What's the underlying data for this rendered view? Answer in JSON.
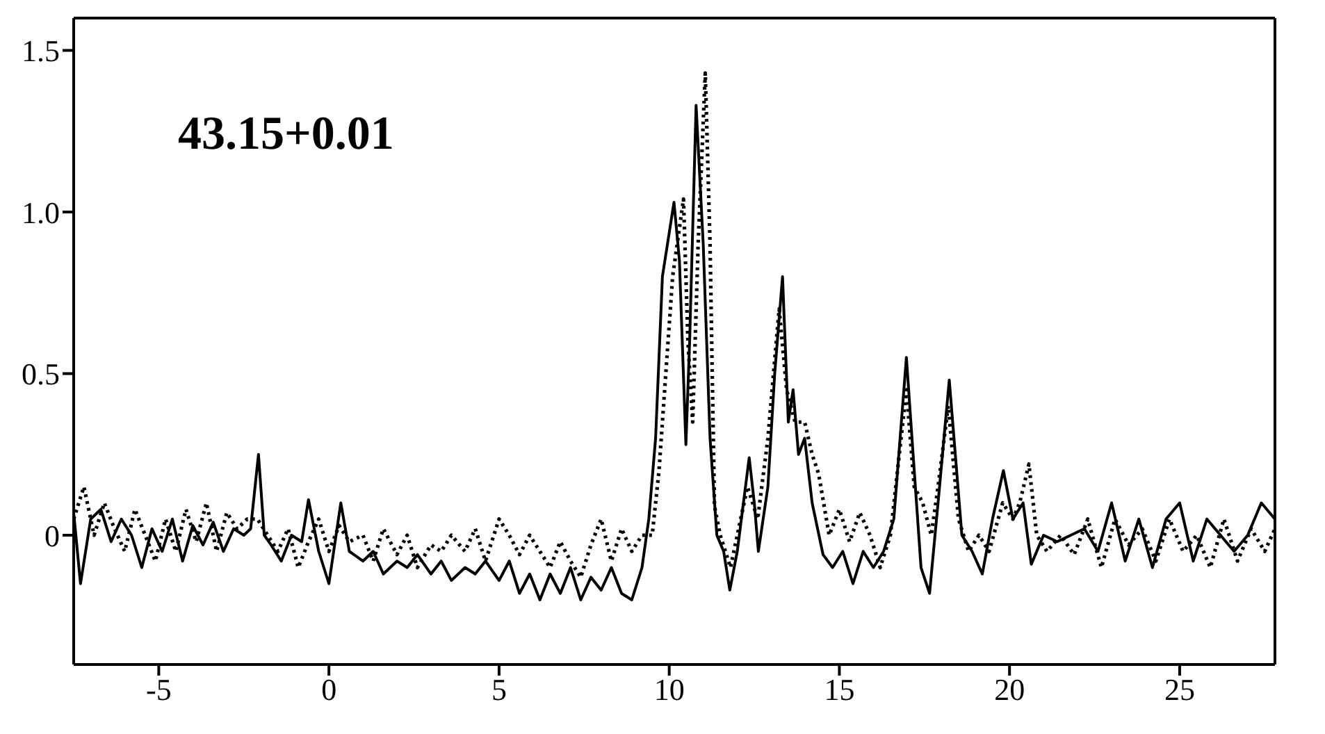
{
  "chart_data": {
    "type": "line",
    "annotations": [
      "43.15+0.01"
    ],
    "xlim": [
      -7.5,
      27.8
    ],
    "xticks": [
      -5,
      0,
      5,
      10,
      15,
      20,
      25
    ],
    "ylim": [
      -0.4,
      1.6
    ],
    "yticks": [
      0,
      0.5,
      {
        "value": 1,
        "label": "1.0"
      },
      1.5
    ],
    "grid": false,
    "legend": false,
    "marker": "none",
    "series": [
      {
        "color": "#000000",
        "line_style": "solid",
        "x": [
          -7.5,
          -7.3,
          -7.0,
          -6.7,
          -6.4,
          -6.1,
          -5.8,
          -5.5,
          -5.2,
          -4.9,
          -4.6,
          -4.3,
          -4.0,
          -3.7,
          -3.4,
          -3.1,
          -2.8,
          -2.5,
          -2.3,
          -2.07,
          -1.9,
          -1.7,
          -1.4,
          -1.1,
          -0.8,
          -0.6,
          -0.3,
          0.0,
          0.35,
          0.6,
          1.0,
          1.3,
          1.6,
          2.0,
          2.3,
          2.6,
          3.0,
          3.3,
          3.6,
          4.0,
          4.3,
          4.6,
          5.0,
          5.3,
          5.6,
          5.9,
          6.2,
          6.5,
          6.8,
          7.1,
          7.4,
          7.7,
          8.0,
          8.3,
          8.6,
          8.9,
          9.2,
          9.4,
          9.6,
          9.8,
          10.14,
          10.3,
          10.49,
          10.6,
          10.79,
          11.0,
          11.2,
          11.4,
          11.6,
          11.78,
          12.0,
          12.35,
          12.5,
          12.62,
          12.9,
          13.1,
          13.33,
          13.5,
          13.64,
          13.8,
          13.98,
          14.2,
          14.52,
          14.8,
          15.1,
          15.4,
          15.7,
          16.0,
          16.3,
          16.6,
          16.97,
          17.2,
          17.4,
          17.65,
          17.9,
          18.23,
          18.6,
          18.9,
          19.2,
          19.5,
          19.82,
          20.1,
          20.4,
          20.64,
          21.0,
          21.4,
          21.8,
          22.2,
          22.6,
          23.0,
          23.4,
          23.8,
          24.2,
          24.6,
          25.0,
          25.4,
          25.8,
          26.2,
          26.6,
          27.0,
          27.4,
          27.8
        ],
        "values": [
          0.07,
          -0.15,
          0.05,
          0.08,
          -0.02,
          0.05,
          0.0,
          -0.1,
          0.02,
          -0.05,
          0.05,
          -0.08,
          0.03,
          -0.03,
          0.04,
          -0.05,
          0.02,
          0.0,
          0.02,
          0.25,
          0.0,
          -0.03,
          -0.08,
          0.0,
          -0.02,
          0.11,
          -0.05,
          -0.15,
          0.1,
          -0.05,
          -0.08,
          -0.05,
          -0.12,
          -0.08,
          -0.1,
          -0.06,
          -0.12,
          -0.08,
          -0.14,
          -0.1,
          -0.12,
          -0.08,
          -0.14,
          -0.08,
          -0.18,
          -0.12,
          -0.2,
          -0.12,
          -0.18,
          -0.1,
          -0.2,
          -0.13,
          -0.17,
          -0.1,
          -0.18,
          -0.2,
          -0.1,
          0.05,
          0.3,
          0.8,
          1.03,
          0.85,
          0.28,
          0.6,
          1.33,
          0.9,
          0.3,
          0.0,
          -0.05,
          -0.17,
          -0.05,
          0.24,
          0.1,
          -0.05,
          0.15,
          0.5,
          0.8,
          0.35,
          0.45,
          0.25,
          0.3,
          0.1,
          -0.06,
          -0.1,
          -0.05,
          -0.15,
          -0.05,
          -0.1,
          -0.05,
          0.05,
          0.55,
          0.2,
          -0.1,
          -0.18,
          0.1,
          0.48,
          0.0,
          -0.05,
          -0.12,
          0.05,
          0.2,
          0.05,
          0.1,
          -0.09,
          0.0,
          -0.02,
          0.0,
          0.02,
          -0.05,
          0.1,
          -0.08,
          0.05,
          -0.1,
          0.05,
          0.1,
          -0.08,
          0.05,
          0.0,
          -0.05,
          0.0,
          0.1,
          0.05
        ]
      },
      {
        "color": "#000000",
        "line_style": "dotted",
        "x": [
          -7.5,
          -7.2,
          -6.9,
          -6.6,
          -6.3,
          -6.0,
          -5.7,
          -5.4,
          -5.1,
          -4.8,
          -4.5,
          -4.2,
          -3.9,
          -3.6,
          -3.3,
          -3.0,
          -2.7,
          -2.4,
          -2.1,
          -1.8,
          -1.5,
          -1.2,
          -0.9,
          -0.6,
          -0.3,
          0.0,
          0.3,
          0.6,
          1.0,
          1.3,
          1.6,
          2.0,
          2.3,
          2.6,
          3.0,
          3.3,
          3.6,
          4.0,
          4.3,
          4.6,
          5.0,
          5.3,
          5.6,
          5.9,
          6.2,
          6.5,
          6.8,
          7.1,
          7.4,
          7.7,
          8.0,
          8.3,
          8.6,
          8.9,
          9.2,
          9.5,
          9.7,
          9.9,
          10.1,
          10.42,
          10.55,
          10.69,
          10.85,
          11.06,
          11.2,
          11.33,
          11.5,
          11.8,
          12.0,
          12.3,
          12.6,
          12.9,
          13.23,
          13.45,
          13.7,
          13.98,
          14.2,
          14.39,
          14.7,
          15.0,
          15.3,
          15.6,
          15.9,
          16.2,
          16.5,
          16.97,
          17.2,
          17.45,
          17.7,
          17.9,
          18.2,
          18.5,
          18.8,
          19.1,
          19.4,
          19.8,
          20.1,
          20.3,
          20.57,
          20.8,
          21.1,
          21.5,
          21.9,
          22.3,
          22.7,
          23.1,
          23.5,
          23.9,
          24.3,
          24.7,
          25.1,
          25.5,
          25.9,
          26.3,
          26.7,
          27.1,
          27.5,
          27.8
        ],
        "values": [
          0.05,
          0.15,
          0.0,
          0.1,
          0.02,
          -0.05,
          0.08,
          0.0,
          -0.08,
          0.05,
          -0.05,
          0.08,
          -0.02,
          0.1,
          -0.05,
          0.07,
          0.02,
          0.05,
          0.05,
          0.0,
          -0.05,
          0.02,
          -0.1,
          -0.02,
          0.05,
          -0.05,
          0.03,
          -0.02,
          0.0,
          -0.08,
          0.02,
          -0.06,
          0.0,
          -0.1,
          -0.03,
          -0.05,
          0.0,
          -0.05,
          0.02,
          -0.08,
          0.05,
          0.0,
          -0.06,
          0.0,
          -0.05,
          -0.1,
          -0.02,
          -0.08,
          -0.13,
          -0.03,
          0.05,
          -0.08,
          0.02,
          -0.05,
          0.0,
          0.0,
          0.2,
          0.5,
          0.8,
          1.04,
          0.6,
          0.35,
          0.9,
          1.43,
          0.9,
          0.09,
          0.0,
          -0.1,
          0.0,
          0.15,
          0.05,
          0.3,
          0.7,
          0.45,
          0.35,
          0.35,
          0.25,
          0.19,
          0.0,
          0.08,
          -0.02,
          0.07,
          0.0,
          -0.1,
          0.0,
          0.45,
          0.15,
          0.1,
          0.0,
          0.15,
          0.4,
          0.05,
          -0.05,
          0.0,
          -0.05,
          0.1,
          0.05,
          0.1,
          0.22,
          0.0,
          -0.05,
          0.0,
          -0.06,
          0.05,
          -0.1,
          0.05,
          -0.03,
          0.02,
          -0.08,
          0.05,
          -0.05,
          0.0,
          -0.1,
          0.05,
          -0.08,
          0.02,
          -0.05,
          0.02
        ]
      }
    ]
  }
}
